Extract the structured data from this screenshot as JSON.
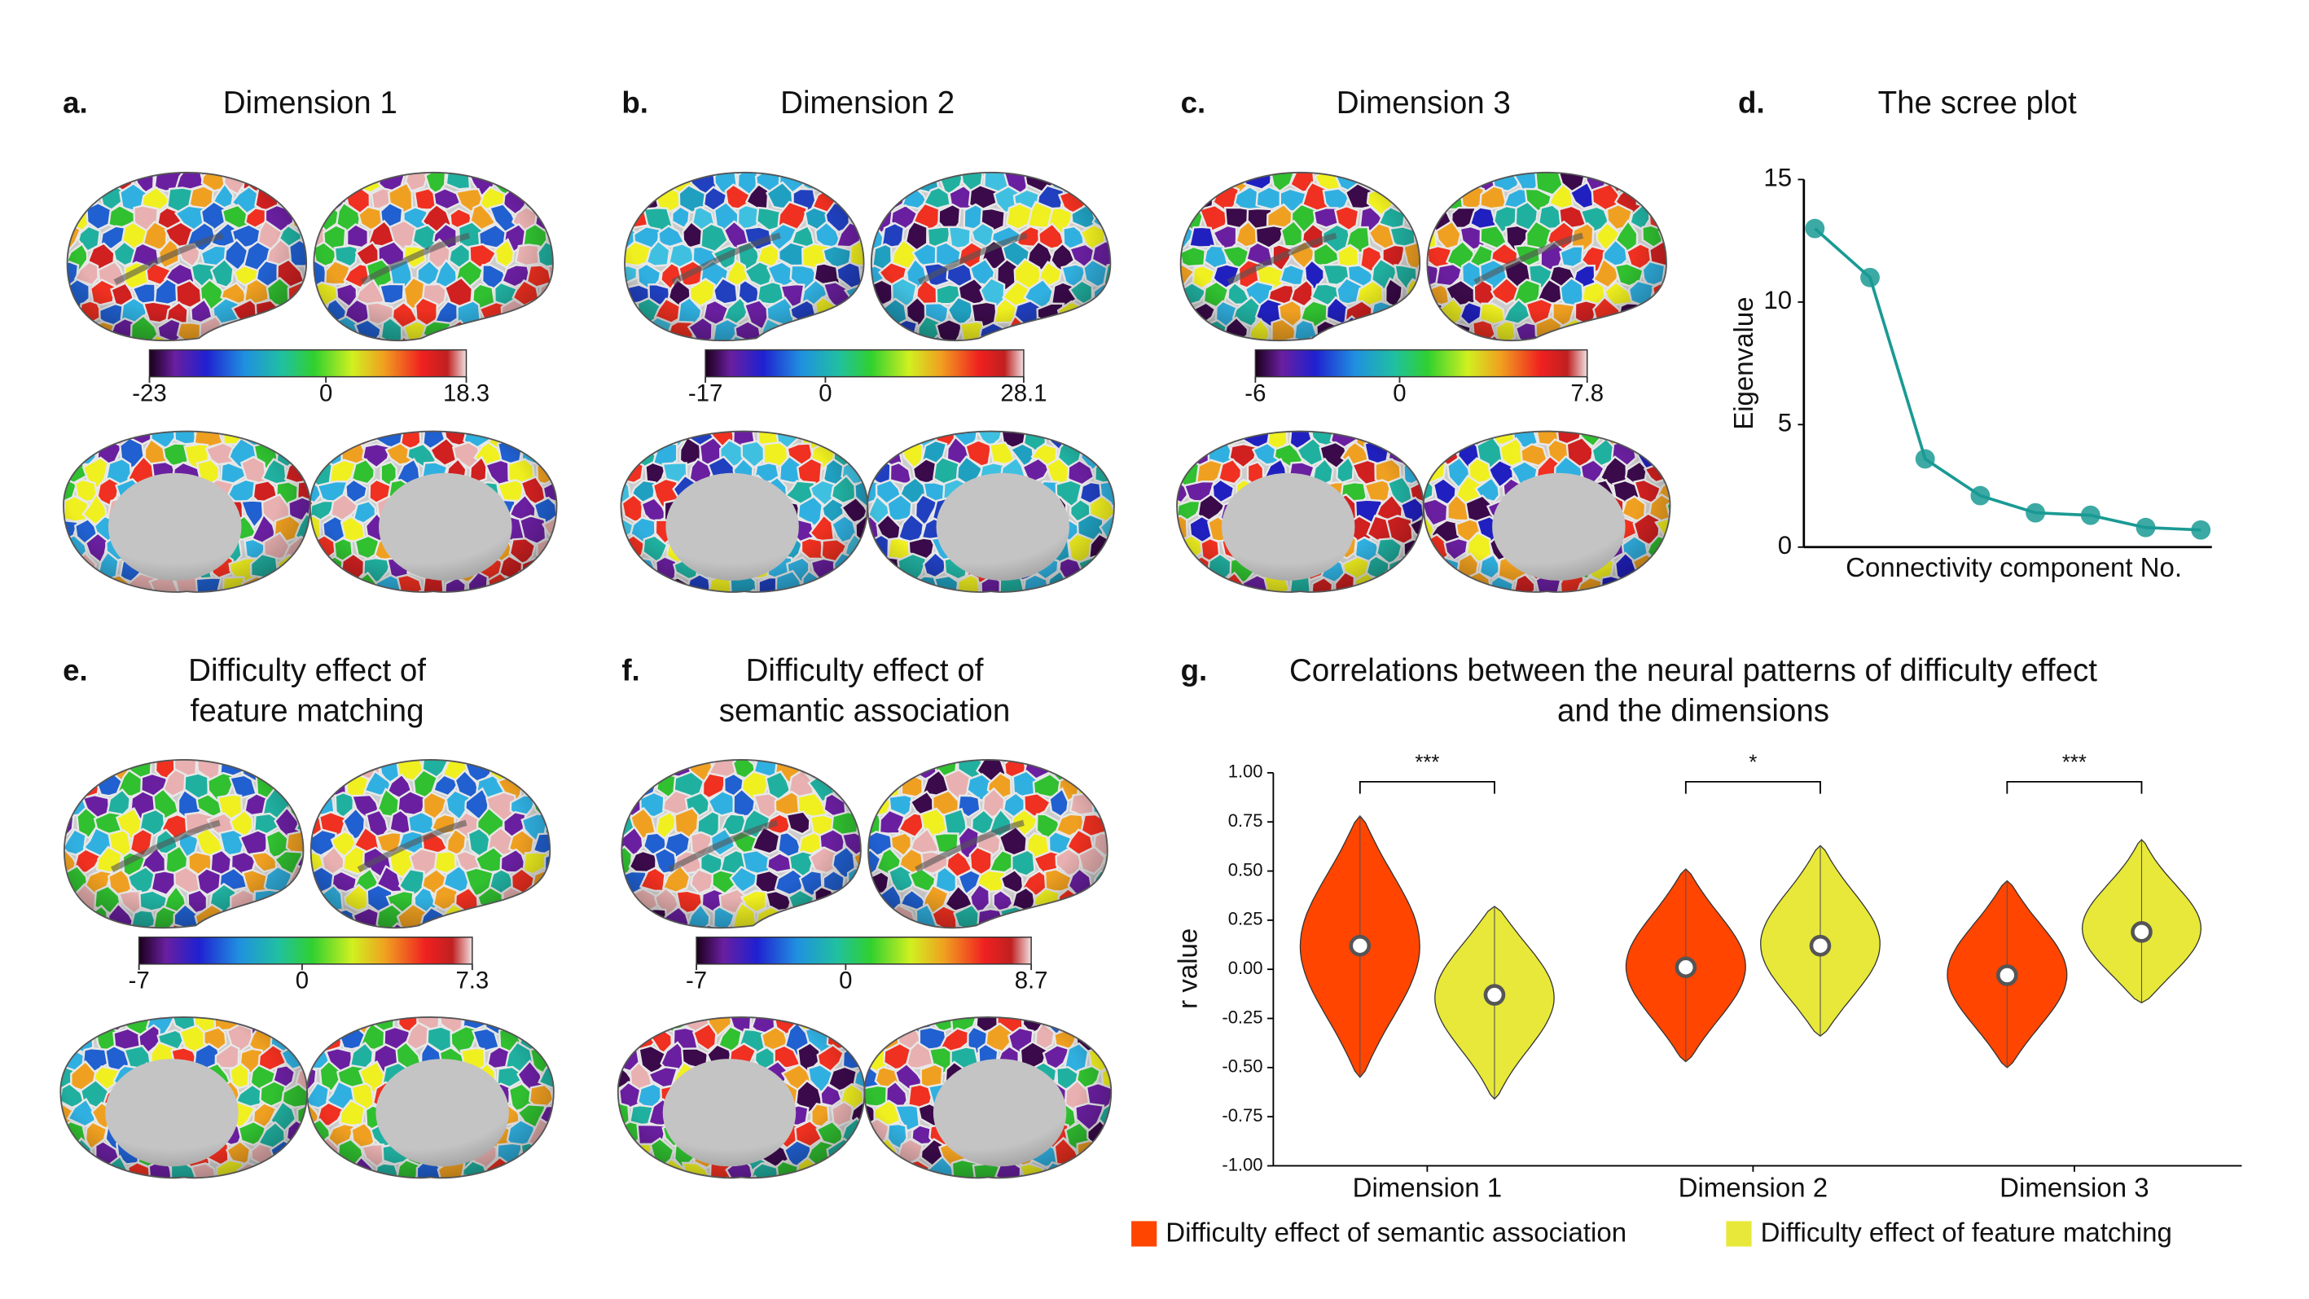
{
  "chart_data": [
    {
      "type": "brain_map",
      "panel_label": "a.",
      "title": [
        "Dimension 1"
      ],
      "colorbar_ticks": [
        -23,
        0,
        18.3
      ]
    },
    {
      "type": "brain_map",
      "panel_label": "b.",
      "title": [
        "Dimension 2"
      ],
      "colorbar_ticks": [
        -17,
        0,
        28.1
      ]
    },
    {
      "type": "brain_map",
      "panel_label": "c.",
      "title": [
        "Dimension 3"
      ],
      "colorbar_ticks": [
        -6,
        0,
        7.8
      ]
    },
    {
      "type": "line",
      "panel_label": "d.",
      "title": [
        "The scree plot"
      ],
      "x_label": "Connectivity component No.",
      "y_label": "Eigenvalue",
      "x": [
        1,
        2,
        3,
        4,
        5,
        6,
        7,
        8
      ],
      "values": [
        13.0,
        11.0,
        3.6,
        2.1,
        1.4,
        1.3,
        0.8,
        0.7
      ],
      "color": "#1a9a94",
      "xlim": [
        0.8,
        8.2
      ],
      "ylim": [
        0,
        15
      ],
      "yticks": [
        0,
        5,
        10,
        15
      ]
    },
    {
      "type": "brain_map",
      "panel_label": "e.",
      "title": [
        "Difficulty effect of",
        "feature matching"
      ],
      "colorbar_ticks": [
        -7,
        0,
        7.3
      ]
    },
    {
      "type": "brain_map",
      "panel_label": "f.",
      "title": [
        "Difficulty effect of",
        "semantic association"
      ],
      "colorbar_ticks": [
        -7,
        0,
        8.7
      ]
    },
    {
      "type": "violin",
      "panel_label": "g.",
      "title": [
        "Correlations between the neural patterns of difficulty effect",
        "and the dimensions"
      ],
      "y_label": "r value",
      "categories": [
        "Dimension 1",
        "Dimension 2",
        "Dimension 3"
      ],
      "annotations": [
        "***",
        "*",
        "***"
      ],
      "ylim": [
        -1,
        1
      ],
      "yticks": [
        {
          "value": -1,
          "label": "-1.00"
        },
        {
          "value": -0.75,
          "label": "-0.75"
        },
        {
          "value": -0.5,
          "label": "-0.50"
        },
        {
          "value": -0.25,
          "label": "-0.25"
        },
        {
          "value": 0,
          "label": "0.00"
        },
        {
          "value": 0.25,
          "label": "0.25"
        },
        {
          "value": 0.5,
          "label": "0.50"
        },
        {
          "value": 0.75,
          "label": "0.75"
        },
        {
          "value": 1,
          "label": "1.00"
        }
      ],
      "series": [
        {
          "name": "Difficulty effect of semantic association",
          "color": "#ff4500",
          "medians": [
            0.12,
            0.01,
            -0.03
          ],
          "mins": [
            -0.55,
            -0.47,
            -0.5
          ],
          "maxs": [
            0.78,
            0.51,
            0.45
          ]
        },
        {
          "name": "Difficulty effect of feature matching",
          "color": "#e8e83a",
          "medians": [
            -0.13,
            0.12,
            0.19
          ],
          "mins": [
            -0.66,
            -0.34,
            -0.17
          ],
          "maxs": [
            0.32,
            0.63,
            0.66
          ]
        }
      ]
    }
  ]
}
